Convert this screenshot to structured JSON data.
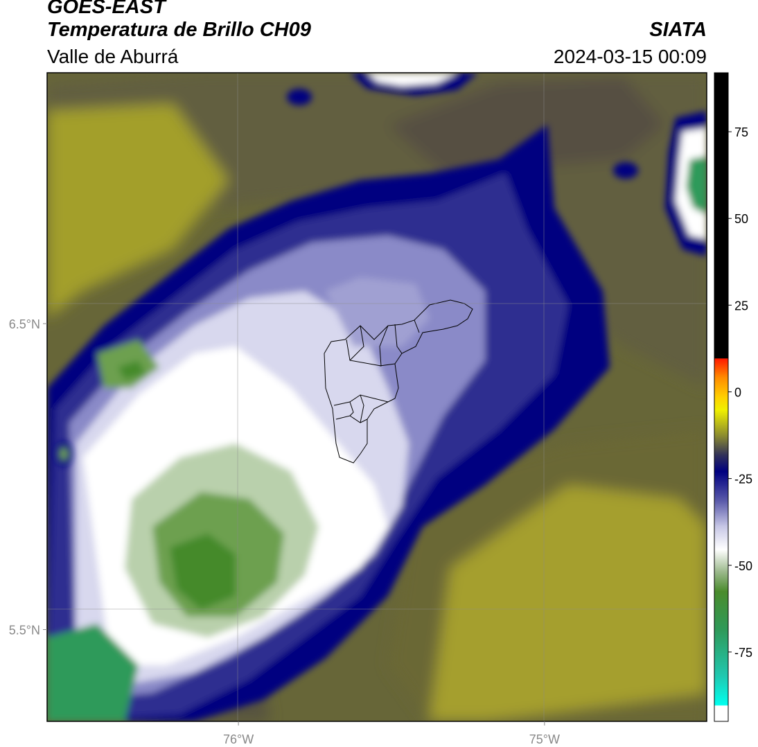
{
  "header": {
    "satellite": "GOES-EAST",
    "product": "Temperatura de Brillo CH09",
    "region": "Valle de Aburrá",
    "agency": "SIATA",
    "datetime": "2024-03-15 00:09"
  },
  "map": {
    "lon_ticks": [
      {
        "value": -76,
        "label": "76°W"
      },
      {
        "value": -75,
        "label": "75°W"
      }
    ],
    "lat_ticks": [
      {
        "value": 6.5,
        "label": "6.5°N"
      },
      {
        "value": 5.5,
        "label": "5.5°N"
      }
    ],
    "lon_range": [
      -76.625,
      -74.47
    ],
    "lat_range": [
      5.2,
      7.32
    ],
    "colors": {
      "olive": "#6b6b38",
      "dark_olive": "#565042",
      "yellow_olive": "#a4a02c",
      "navy": "#000080",
      "lavender": "#9a9ad0",
      "white": "#ffffff",
      "green": "#488a2c",
      "teal": "#2aa07a"
    }
  },
  "colorbar": {
    "ticks": [
      {
        "value": 75,
        "label": "75"
      },
      {
        "value": 50,
        "label": "50"
      },
      {
        "value": 25,
        "label": "25"
      },
      {
        "value": 0,
        "label": "0"
      },
      {
        "value": -25,
        "label": "-25"
      },
      {
        "value": -50,
        "label": "-50"
      },
      {
        "value": -75,
        "label": "-75"
      }
    ],
    "range": [
      -95,
      92
    ]
  }
}
